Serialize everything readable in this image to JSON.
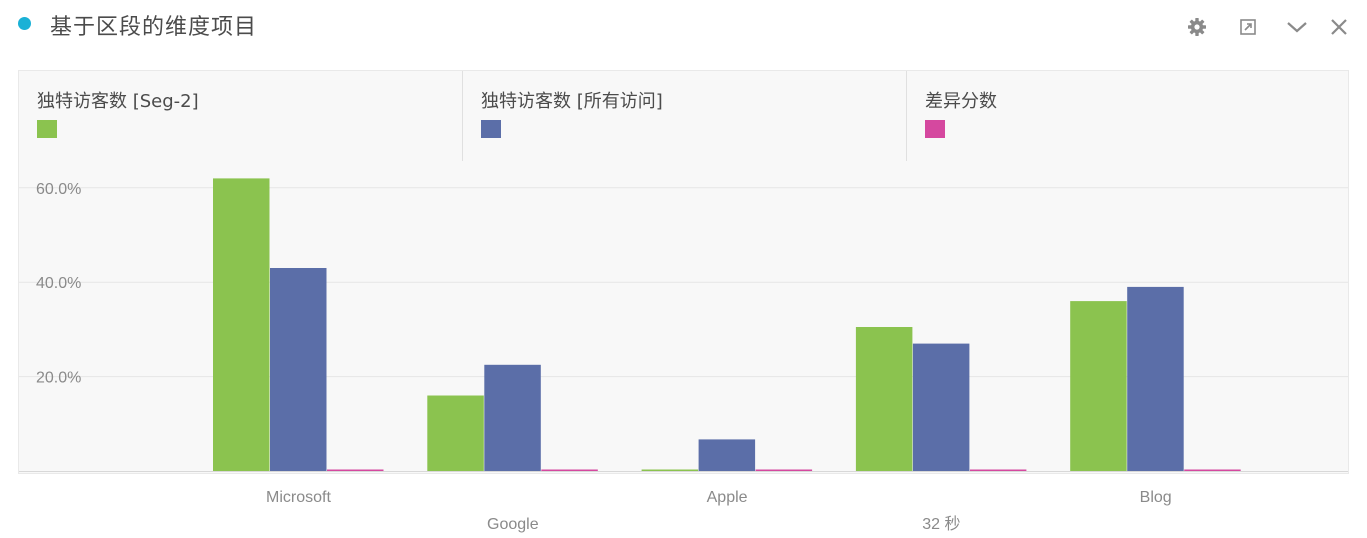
{
  "header": {
    "title": "基于区段的维度项目",
    "icons": [
      "gear-icon",
      "resize-icon",
      "chevron-down-icon",
      "close-icon"
    ]
  },
  "colors": {
    "status_dot": "#1ab1d6",
    "series": [
      "#8bc34f",
      "#5b6ea8",
      "#d5489f"
    ],
    "icons": "#8a8a8a"
  },
  "chart_data": {
    "type": "bar",
    "categories": [
      "Microsoft",
      "Google",
      "Apple",
      "32 秒",
      "Blog"
    ],
    "series": [
      {
        "name": "独特访客数 [Seg-2]",
        "values": [
          62.0,
          16.0,
          0.2,
          30.5,
          36.0
        ]
      },
      {
        "name": "独特访客数 [所有访问]",
        "values": [
          43.0,
          22.5,
          6.7,
          27.0,
          39.0
        ]
      },
      {
        "name": "差异分数",
        "values": [
          0.2,
          0.2,
          0.2,
          0.2,
          0.2
        ]
      }
    ],
    "yticks": [
      "20.0%",
      "40.0%",
      "60.0%"
    ],
    "ylim": [
      0,
      60
    ],
    "xlabel": "",
    "ylabel": "",
    "grid": true,
    "legend": "top"
  }
}
